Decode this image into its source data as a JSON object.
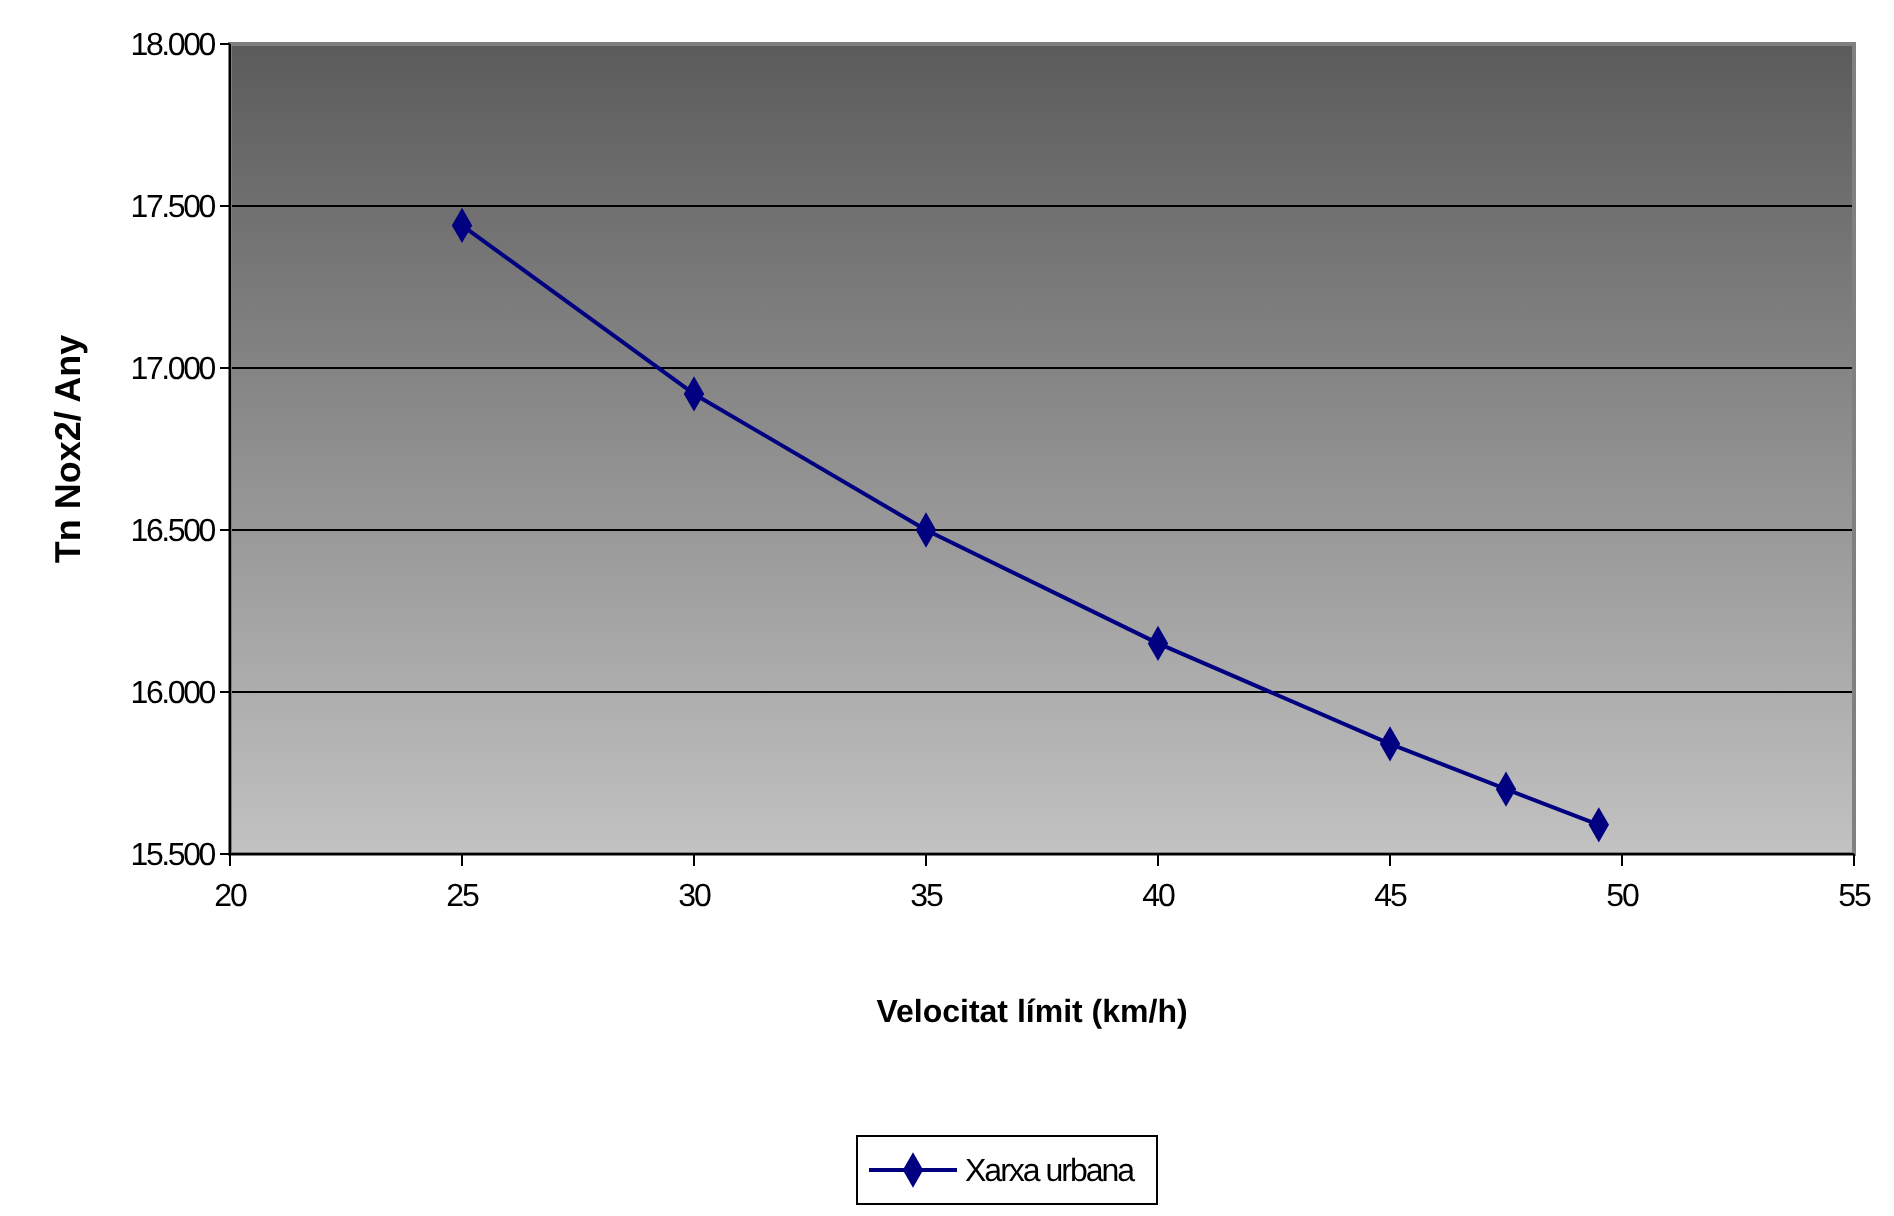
{
  "chart_data": {
    "type": "line",
    "xlabel": "Velocitat límit (km/h)",
    "ylabel": "Tn Nox2/ Any",
    "x": [
      25,
      30,
      35,
      40,
      45,
      47.5,
      49.5
    ],
    "series": [
      {
        "name": "Xarxa urbana",
        "color": "#000080",
        "values": [
          17440,
          16920,
          16500,
          16150,
          15840,
          15700,
          15590
        ]
      }
    ],
    "xlim": [
      20,
      55
    ],
    "xticks": [
      20,
      25,
      30,
      35,
      40,
      45,
      50,
      55
    ],
    "ylim": [
      15500,
      18000
    ],
    "yticks": [
      {
        "value": 15500,
        "label": "15.500"
      },
      {
        "value": 16000,
        "label": "16.000"
      },
      {
        "value": 16500,
        "label": "16.500"
      },
      {
        "value": 17000,
        "label": "17.000"
      },
      {
        "value": 17500,
        "label": "17.500"
      },
      {
        "value": 18000,
        "label": "18.000"
      }
    ],
    "grid": "y",
    "legend": "bottom",
    "marker": "diamond",
    "line_style": "solid"
  }
}
